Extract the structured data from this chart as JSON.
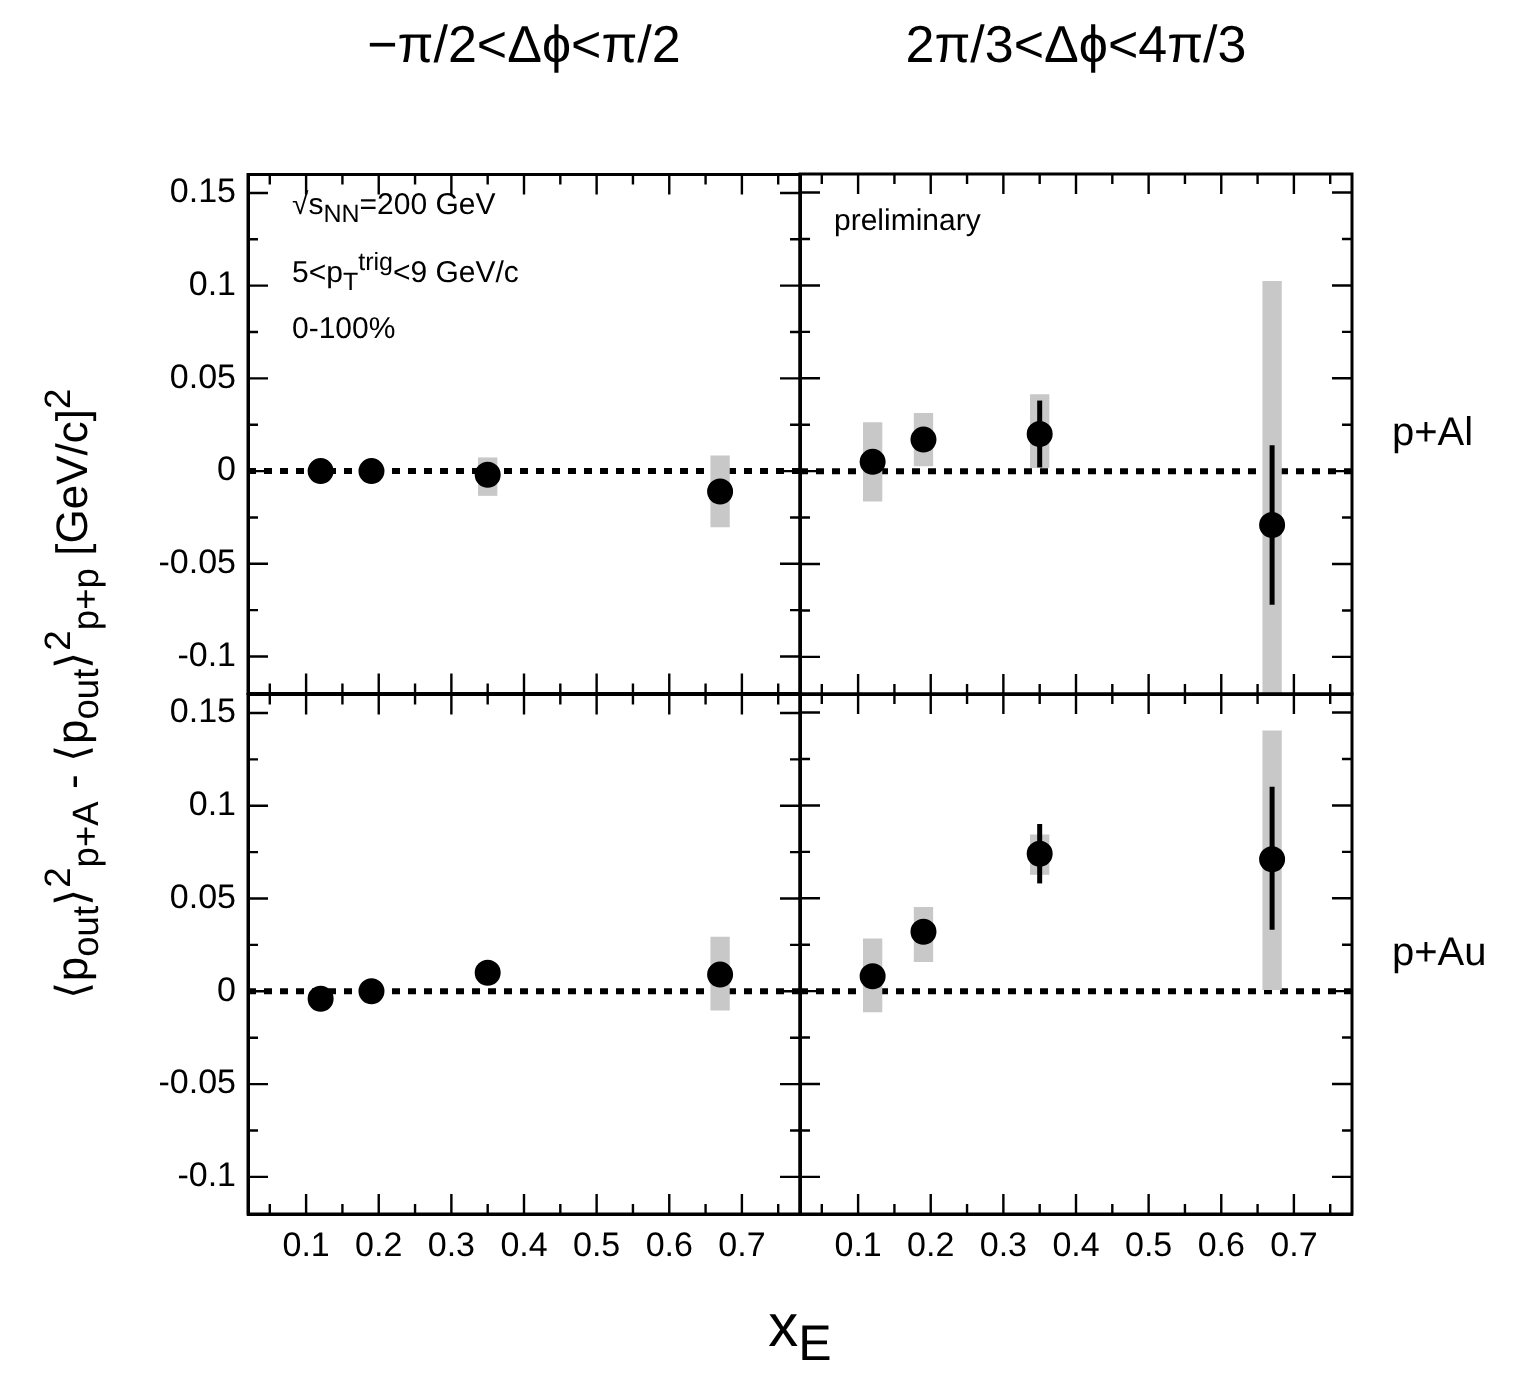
{
  "chart_data": [
    {
      "type": "scatter",
      "title": "−π/2<Δϕ<π/2",
      "ylabel": "⟨p$_{out}$⟩$^{2}$$_{p+A}$ - ⟨p$_{out}$⟩$^{2}$$_{p+p}$ [GeV/c]$^{2}$",
      "annotations": [
        "√s$_{NN}$=200 GeV",
        "5<p$_{T}$$^{trig}$<9 GeV/c",
        "0-100%"
      ],
      "marker": "circle",
      "tick_labels": "y",
      "xlim": [
        0.02,
        0.78
      ],
      "xticks": [
        {
          "value": 0.05,
          "label": null
        },
        0.1,
        {
          "value": 0.15,
          "label": null
        },
        0.2,
        {
          "value": 0.25,
          "label": null
        },
        0.3,
        {
          "value": 0.35,
          "label": null
        },
        0.4,
        {
          "value": 0.45,
          "label": null
        },
        0.5,
        {
          "value": 0.55,
          "label": null
        },
        0.6,
        {
          "value": 0.65,
          "label": null
        },
        0.7,
        {
          "value": 0.75,
          "label": null
        }
      ],
      "ylim": [
        -0.12,
        0.16
      ],
      "yticks": [
        -0.1,
        {
          "value": -0.075,
          "label": null
        },
        -0.05,
        {
          "value": -0.025,
          "label": null
        },
        0,
        {
          "value": 0.025,
          "label": null
        },
        0.05,
        {
          "value": 0.075,
          "label": null
        },
        0.1,
        {
          "value": 0.125,
          "label": null
        },
        0.15
      ],
      "ref_lines": [
        {
          "axis": "y",
          "value": 0,
          "color": "#000000",
          "line_style": "dotted"
        }
      ],
      "series": [
        {
          "type": "bar",
          "color": "#c8c8c8",
          "x": [
            0.35,
            0.67
          ],
          "base": [
            -0.013,
            -0.03
          ],
          "values": [
            0.02,
            0.038
          ]
        },
        {
          "type": "scatter",
          "color": "#000000",
          "x": [
            0.12,
            0.19,
            0.35,
            0.67
          ],
          "values": [
            0,
            0,
            -0.002,
            -0.011
          ]
        }
      ]
    },
    {
      "type": "scatter",
      "title": "2π/3<Δϕ<4π/3",
      "y2label": "p+Al",
      "annotations": [
        "preliminary"
      ],
      "marker": "circle",
      "tick_labels": false,
      "xlim": [
        0.02,
        0.78
      ],
      "xticks": [
        {
          "value": 0.05,
          "label": null
        },
        0.1,
        {
          "value": 0.15,
          "label": null
        },
        0.2,
        {
          "value": 0.25,
          "label": null
        },
        0.3,
        {
          "value": 0.35,
          "label": null
        },
        0.4,
        {
          "value": 0.45,
          "label": null
        },
        0.5,
        {
          "value": 0.55,
          "label": null
        },
        0.6,
        {
          "value": 0.65,
          "label": null
        },
        0.7,
        {
          "value": 0.75,
          "label": null
        }
      ],
      "ylim": [
        -0.12,
        0.16
      ],
      "yticks": [
        -0.1,
        {
          "value": -0.075,
          "label": null
        },
        -0.05,
        {
          "value": -0.025,
          "label": null
        },
        0,
        {
          "value": 0.025,
          "label": null
        },
        0.05,
        {
          "value": 0.075,
          "label": null
        },
        0.1,
        {
          "value": 0.125,
          "label": null
        },
        0.15
      ],
      "ref_lines": [
        {
          "axis": "y",
          "value": 0,
          "color": "#000000",
          "line_style": "dotted"
        }
      ],
      "series": [
        {
          "type": "bar",
          "color": "#c8c8c8",
          "x": [
            0.12,
            0.19,
            0.35,
            0.67
          ],
          "base": [
            -0.016,
            0.003,
            0.002,
            -0.12
          ],
          "values": [
            0.042,
            0.028,
            0.039,
            0.222
          ]
        },
        {
          "type": "scatter",
          "color": "#000000",
          "x": [
            0.12,
            0.19,
            0.35,
            0.67
          ],
          "values": [
            0.005,
            0.017,
            0.02,
            -0.029
          ],
          "errors": [
            null,
            null,
            [
              0.002,
              0.038
            ],
            [
              -0.072,
              0.014
            ]
          ]
        }
      ]
    },
    {
      "type": "scatter",
      "xlabel": "x$_{E}$",
      "marker": "circle",
      "xlim": [
        0.02,
        0.78
      ],
      "xticks": [
        {
          "value": 0.05,
          "label": null
        },
        0.1,
        {
          "value": 0.15,
          "label": null
        },
        0.2,
        {
          "value": 0.25,
          "label": null
        },
        0.3,
        {
          "value": 0.35,
          "label": null
        },
        0.4,
        {
          "value": 0.45,
          "label": null
        },
        0.5,
        {
          "value": 0.55,
          "label": null
        },
        0.6,
        {
          "value": 0.65,
          "label": null
        },
        0.7,
        {
          "value": 0.75,
          "label": null
        }
      ],
      "ylim": [
        -0.12,
        0.16
      ],
      "yticks": [
        -0.1,
        {
          "value": -0.075,
          "label": null
        },
        -0.05,
        {
          "value": -0.025,
          "label": null
        },
        0,
        {
          "value": 0.025,
          "label": null
        },
        0.05,
        {
          "value": 0.075,
          "label": null
        },
        0.1,
        {
          "value": 0.125,
          "label": null
        },
        0.15
      ],
      "ref_lines": [
        {
          "axis": "y",
          "value": 0,
          "color": "#000000",
          "line_style": "dotted"
        }
      ],
      "series": [
        {
          "type": "bar",
          "color": "#c8c8c8",
          "x": [
            0.67
          ],
          "base": [
            -0.01
          ],
          "values": [
            0.039
          ]
        },
        {
          "type": "scatter",
          "color": "#000000",
          "x": [
            0.12,
            0.19,
            0.35,
            0.67
          ],
          "values": [
            -0.004,
            0,
            0.01,
            0.009
          ]
        }
      ]
    },
    {
      "type": "scatter",
      "y2label": "p+Au",
      "marker": "circle",
      "tick_labels": "x",
      "xlim": [
        0.02,
        0.78
      ],
      "xticks": [
        {
          "value": 0.05,
          "label": null
        },
        0.1,
        {
          "value": 0.15,
          "label": null
        },
        0.2,
        {
          "value": 0.25,
          "label": null
        },
        0.3,
        {
          "value": 0.35,
          "label": null
        },
        0.4,
        {
          "value": 0.45,
          "label": null
        },
        0.5,
        {
          "value": 0.55,
          "label": null
        },
        0.6,
        {
          "value": 0.65,
          "label": null
        },
        0.7,
        {
          "value": 0.75,
          "label": null
        }
      ],
      "ylim": [
        -0.12,
        0.16
      ],
      "yticks": [
        -0.1,
        {
          "value": -0.075,
          "label": null
        },
        -0.05,
        {
          "value": -0.025,
          "label": null
        },
        0,
        {
          "value": 0.025,
          "label": null
        },
        0.05,
        {
          "value": 0.075,
          "label": null
        },
        0.1,
        {
          "value": 0.125,
          "label": null
        },
        0.15
      ],
      "ref_lines": [
        {
          "axis": "y",
          "value": 0,
          "color": "#000000",
          "line_style": "dotted"
        }
      ],
      "series": [
        {
          "type": "bar",
          "color": "#c8c8c8",
          "x": [
            0.12,
            0.19,
            0.35,
            0.67
          ],
          "base": [
            -0.011,
            0.016,
            0.063,
            0.001
          ],
          "values": [
            0.039,
            0.029,
            0.021,
            0.139
          ]
        },
        {
          "type": "scatter",
          "color": "#000000",
          "x": [
            0.12,
            0.19,
            0.35,
            0.67
          ],
          "values": [
            0.008,
            0.032,
            0.074,
            0.071
          ],
          "errors": [
            null,
            null,
            [
              0.058,
              0.09
            ],
            [
              0.033,
              0.11
            ]
          ]
        }
      ]
    }
  ]
}
